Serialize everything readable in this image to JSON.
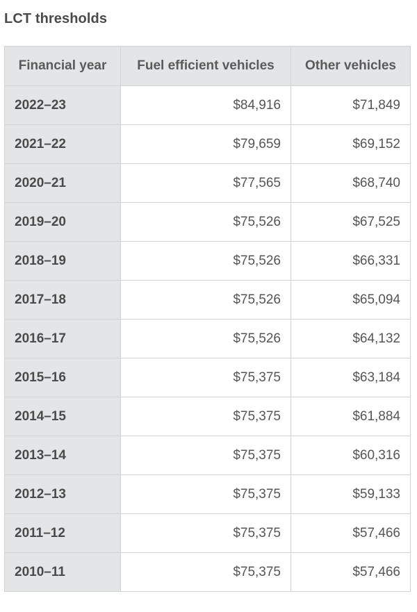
{
  "title": "LCT thresholds",
  "table": {
    "headers": [
      "Financial year",
      "Fuel efficient vehicles",
      "Other vehicles"
    ],
    "rows": [
      {
        "year": "2022–23",
        "fuel_efficient": "$84,916",
        "other": "$71,849"
      },
      {
        "year": "2021–22",
        "fuel_efficient": "$79,659",
        "other": "$69,152"
      },
      {
        "year": "2020–21",
        "fuel_efficient": "$77,565",
        "other": "$68,740"
      },
      {
        "year": "2019–20",
        "fuel_efficient": "$75,526",
        "other": "$67,525"
      },
      {
        "year": "2018–19",
        "fuel_efficient": "$75,526",
        "other": "$66,331"
      },
      {
        "year": "2017–18",
        "fuel_efficient": "$75,526",
        "other": "$65,094"
      },
      {
        "year": "2016–17",
        "fuel_efficient": "$75,526",
        "other": "$64,132"
      },
      {
        "year": "2015–16",
        "fuel_efficient": "$75,375",
        "other": "$63,184"
      },
      {
        "year": "2014–15",
        "fuel_efficient": "$75,375",
        "other": "$61,884"
      },
      {
        "year": "2013–14",
        "fuel_efficient": "$75,375",
        "other": "$60,316"
      },
      {
        "year": "2012–13",
        "fuel_efficient": "$75,375",
        "other": "$59,133"
      },
      {
        "year": "2011–12",
        "fuel_efficient": "$75,375",
        "other": "$57,466"
      },
      {
        "year": "2010–11",
        "fuel_efficient": "$75,375",
        "other": "$57,466"
      }
    ]
  }
}
